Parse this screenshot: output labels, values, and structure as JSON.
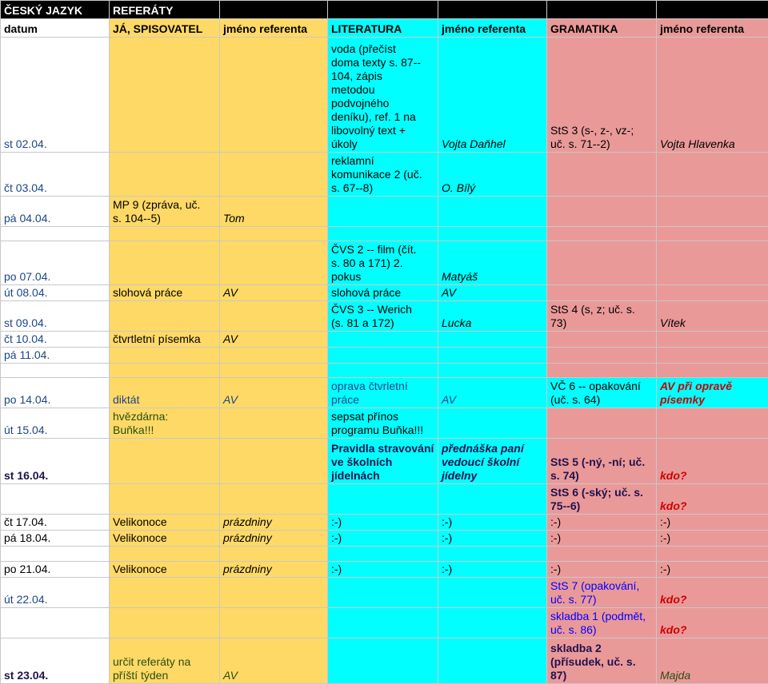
{
  "header": {
    "row1": [
      "ČESKÝ JAZYK",
      "REFERÁTY"
    ],
    "row2": [
      "datum",
      "JÁ, SPISOVATEL",
      "jméno referenta",
      "LITERATURA",
      "jméno referenta",
      "GRAMATIKA",
      "jméno referenta"
    ]
  },
  "rows": [
    [
      "st 02.04.",
      "",
      "",
      "voda (přečíst\ndoma texty s. 87--\n104, zápis\nmetodou\npodvojného\ndeníku), ref. 1 na\nlibovolný text +\núkoly",
      "Vojta Daňhel",
      "StS 3 (s-, z-, vz-;\nuč. s. 71--2)",
      "Vojta Hlavenka"
    ],
    [
      "čt 03.04.",
      "",
      "",
      "reklamní\nkomunikace 2 (uč.\ns. 67--8)",
      "O. Bílý",
      "",
      ""
    ],
    [
      "pá 04.04.",
      "MP 9 (zpráva, uč.\ns. 104--5)",
      "Tom",
      "",
      "",
      "",
      ""
    ],
    [
      "",
      "",
      "",
      "",
      "",
      "",
      ""
    ],
    [
      "po 07.04.",
      "",
      "",
      "ČVS 2 -- film (čít.\ns. 80 a 171) 2.\npokus",
      "Matyáš",
      "",
      ""
    ],
    [
      "út 08.04.",
      "slohová práce",
      "AV",
      "slohová práce",
      "AV",
      "",
      ""
    ],
    [
      "st 09.04.",
      "",
      "",
      "ČVS 3 -- Werich\n(s. 81 a 172)",
      "Lucka",
      "StS 4 (s, z; uč. s.\n73)",
      "Vítek"
    ],
    [
      "čt 10.04.",
      "čtvrtletní písemka",
      "AV",
      "",
      "",
      "",
      ""
    ],
    [
      "pá 11.04.",
      "",
      "",
      "",
      "",
      "",
      ""
    ],
    [
      "",
      "",
      "",
      "",
      "",
      "",
      ""
    ],
    [
      "po 14.04.",
      "diktát",
      "AV",
      "oprava čtvrletní\npráce",
      "AV",
      "VČ 6 -- opakování\n(uč. s. 64)",
      "AV při opravě\npísemky"
    ],
    [
      "út 15.04.",
      "hvězdárna:\nBuňka!!!",
      "",
      "sepsat přínos\nprogramu Buňka!!!",
      "",
      "",
      ""
    ],
    [
      "st 16.04.",
      "",
      "",
      "Pravidla stravování\nve školních\njídelnách",
      "přednáška paní\nvedoucí školní\njídelny",
      "StS 5 (-ný, -ní; uč.\ns. 74)",
      "kdo?"
    ],
    [
      "",
      "",
      "",
      "",
      "",
      "StS 6 (-ský; uč. s.\n75--6)",
      "kdo?"
    ],
    [
      "čt 17.04.",
      "Velikonoce",
      "prázdniny",
      ":-)",
      ":-)",
      ":-)",
      ":-)"
    ],
    [
      "pá 18.04.",
      "Velikonoce",
      "prázdniny",
      ":-)",
      ":-)",
      ":-)",
      ":-)"
    ],
    [
      "",
      "",
      "",
      "",
      "",
      "",
      ""
    ],
    [
      "po 21.04.",
      "Velikonoce",
      "prázdniny",
      ":-)",
      ":-)",
      ":-)",
      ":-)"
    ],
    [
      "út 22.04.",
      "",
      "",
      "",
      "",
      "StS 7 (opakování,\nuč. s. 77)",
      "kdo?"
    ],
    [
      "",
      "",
      "",
      "",
      "",
      "skladba 1 (podmět,\nuč. s. 86)",
      "kdo?"
    ],
    [
      "st 23.04.",
      "určit referáty na\npříští týden",
      "AV",
      "",
      "",
      "skladba 2\n(přísudek, uč. s.\n87)",
      "Majda"
    ]
  ],
  "colors": {
    "yellow": "#ffd966",
    "cyan": "#00ffff",
    "pink": "#ea9999",
    "header_black": "#000000"
  }
}
